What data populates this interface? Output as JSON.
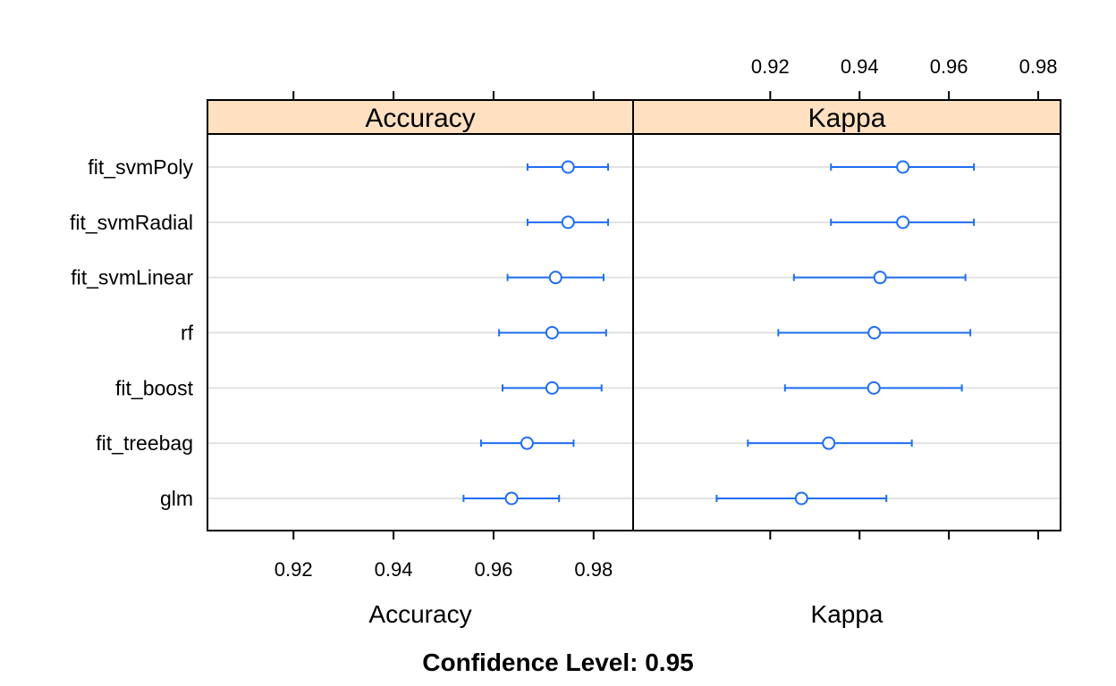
{
  "chart_data": {
    "type": "dotplot",
    "footer": "Confidence Level: 0.95",
    "models": [
      "fit_svmPoly",
      "fit_svmRadial",
      "fit_svmLinear",
      "rf",
      "fit_boost",
      "fit_treebag",
      "glm"
    ],
    "panels": [
      {
        "name": "Accuracy",
        "strip": "Accuracy",
        "xlabel": "Accuracy",
        "xlim": [
          0.9028,
          0.9879
        ],
        "ticks": [
          0.92,
          0.94,
          0.96,
          0.98
        ],
        "tick_labels_position": "bottom",
        "points": [
          {
            "model": "fit_svmPoly",
            "estimate": 0.9749,
            "lower": 0.9668,
            "upper": 0.9829
          },
          {
            "model": "fit_svmRadial",
            "estimate": 0.9749,
            "lower": 0.9668,
            "upper": 0.9829
          },
          {
            "model": "fit_svmLinear",
            "estimate": 0.9724,
            "lower": 0.9628,
            "upper": 0.982
          },
          {
            "model": "rf",
            "estimate": 0.9717,
            "lower": 0.9611,
            "upper": 0.9825
          },
          {
            "model": "fit_boost",
            "estimate": 0.9717,
            "lower": 0.9618,
            "upper": 0.9816
          },
          {
            "model": "fit_treebag",
            "estimate": 0.9667,
            "lower": 0.9575,
            "upper": 0.976
          },
          {
            "model": "glm",
            "estimate": 0.9636,
            "lower": 0.954,
            "upper": 0.9731
          }
        ]
      },
      {
        "name": "Kappa",
        "strip": "Kappa",
        "xlabel": "Kappa",
        "xlim": [
          0.8893,
          0.985
        ],
        "ticks": [
          0.92,
          0.94,
          0.96,
          0.98
        ],
        "tick_labels_position": "top",
        "points": [
          {
            "model": "fit_svmPoly",
            "estimate": 0.9497,
            "lower": 0.9336,
            "upper": 0.9656
          },
          {
            "model": "fit_svmRadial",
            "estimate": 0.9497,
            "lower": 0.9336,
            "upper": 0.9656
          },
          {
            "model": "fit_svmLinear",
            "estimate": 0.9446,
            "lower": 0.9253,
            "upper": 0.9637
          },
          {
            "model": "rf",
            "estimate": 0.9433,
            "lower": 0.9218,
            "upper": 0.9648
          },
          {
            "model": "fit_boost",
            "estimate": 0.9432,
            "lower": 0.9233,
            "upper": 0.9629
          },
          {
            "model": "fit_treebag",
            "estimate": 0.9331,
            "lower": 0.915,
            "upper": 0.9517
          },
          {
            "model": "glm",
            "estimate": 0.927,
            "lower": 0.908,
            "upper": 0.946
          }
        ]
      }
    ],
    "colors": {
      "series": "#1f6ef0",
      "strip_fill": "#ffe0c0",
      "grid": "#e2e2e2",
      "frame": "#000000"
    },
    "grid": true
  }
}
